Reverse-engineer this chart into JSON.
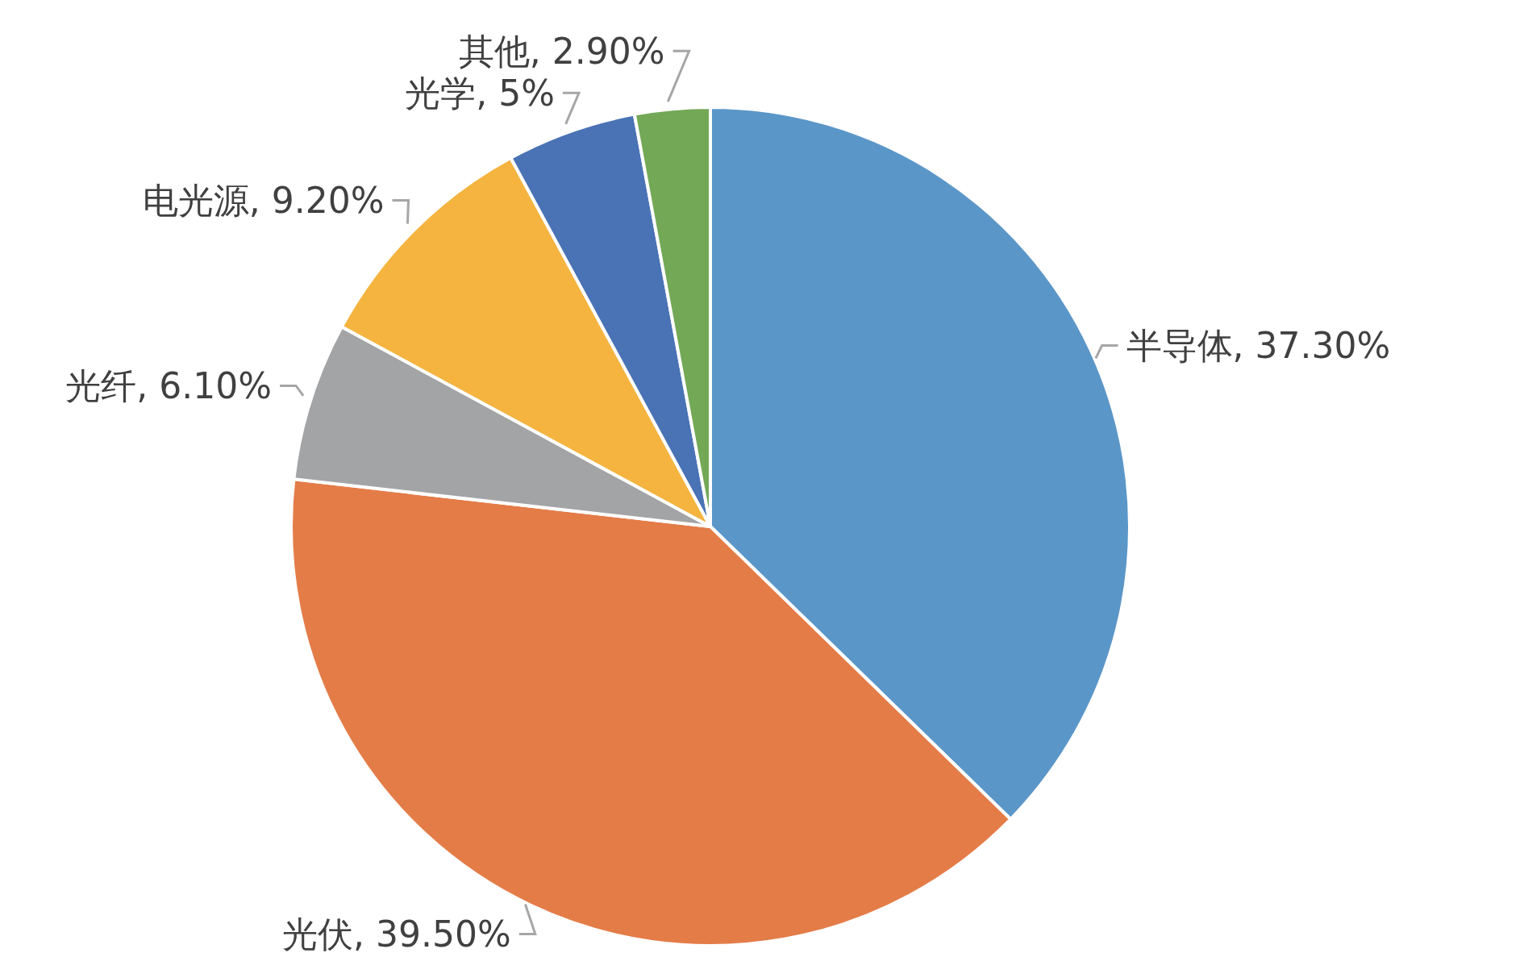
{
  "chart_data": {
    "type": "pie",
    "categories": [
      "半导体",
      "光伏",
      "光纤",
      "电光源",
      "光学",
      "其他"
    ],
    "values": [
      37.3,
      39.5,
      6.1,
      9.2,
      5,
      2.9
    ],
    "value_labels": [
      "37.30%",
      "39.50%",
      "6.10%",
      "9.20%",
      "5%",
      "2.90%"
    ],
    "colors": [
      "#5b96c8",
      "#e47c48",
      "#a3a4a6",
      "#f4b43f",
      "#4a73b5",
      "#73a857"
    ],
    "legend": false
  }
}
